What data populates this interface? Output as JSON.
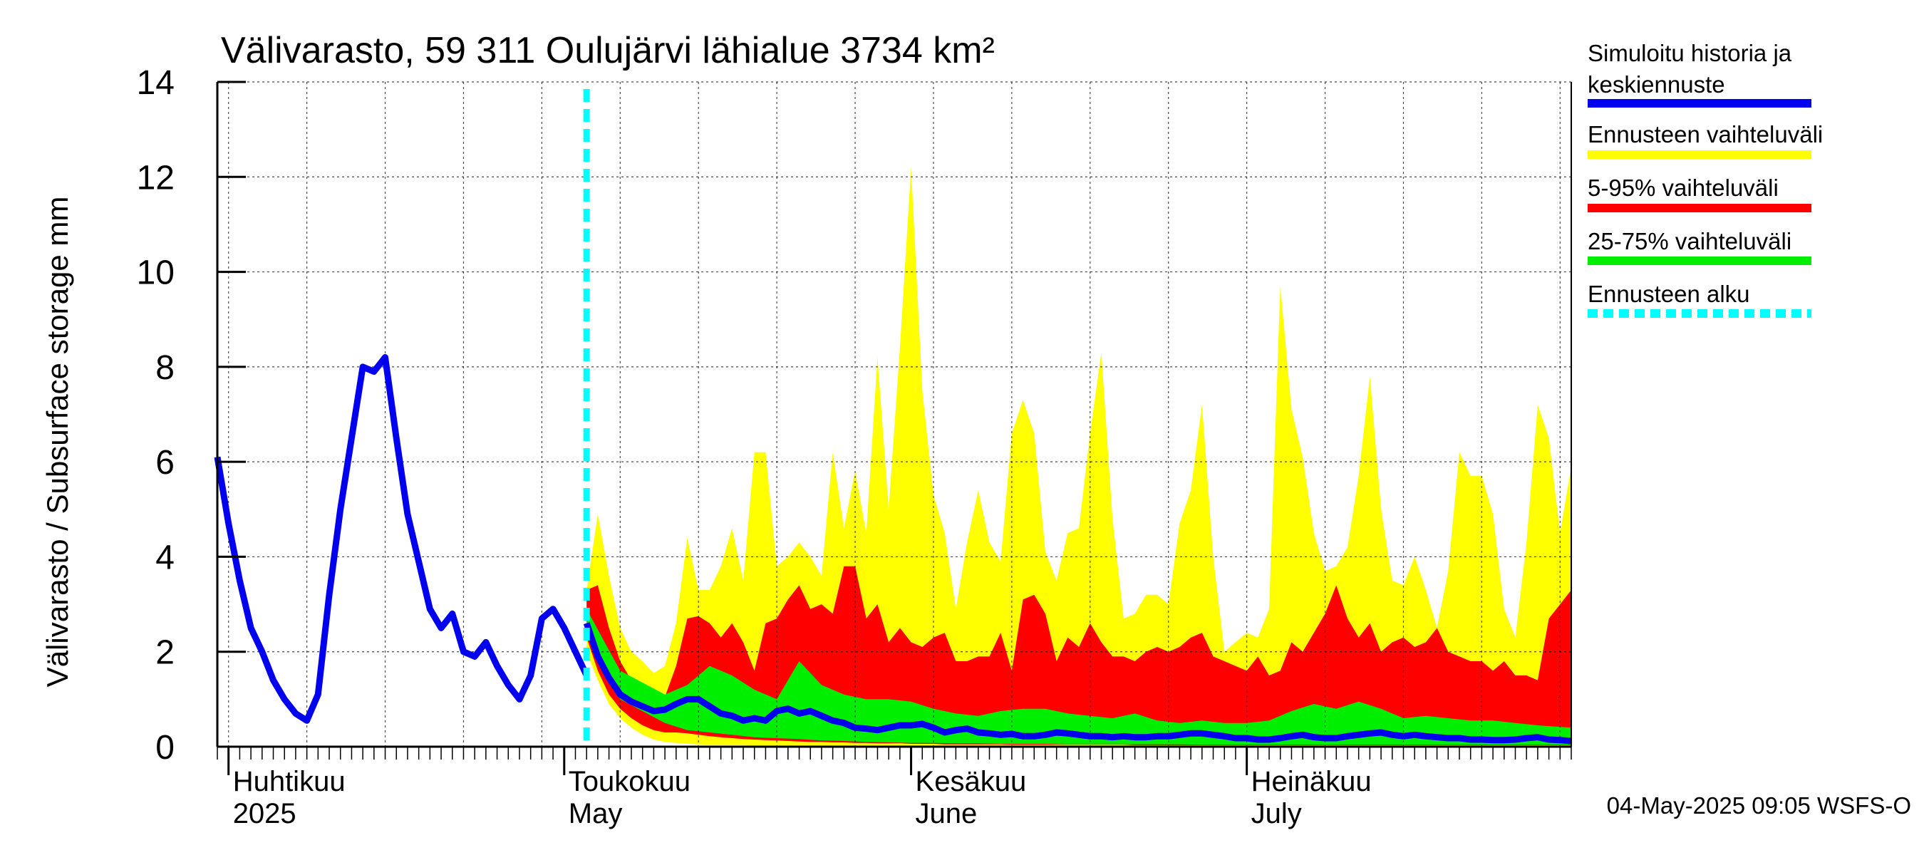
{
  "chart_data": {
    "type": "area",
    "title": "Välivarasto, 59 311 Oulujärvi lähialue 3734 km²",
    "ylabel": "Välivarasto / Subsurface storage  mm",
    "ylim": [
      0,
      14
    ],
    "yticks": [
      0,
      2,
      4,
      6,
      8,
      10,
      12,
      14
    ],
    "grid": true,
    "x_start": "2025-04-01",
    "x_end": "2025-07-31",
    "forecast_start": "2025-05-04",
    "months": [
      {
        "fi": "Huhtikuu",
        "en": "2025",
        "day": 1
      },
      {
        "fi": "Toukokuu",
        "en": "May",
        "day": 31
      },
      {
        "fi": "Kesäkuu",
        "en": "June",
        "day": 62
      },
      {
        "fi": "Heinäkuu",
        "en": "July",
        "day": 92
      }
    ],
    "legend": [
      {
        "label": "Simuloitu historia ja",
        "label2": "keskiennuste",
        "color": "#0000ee",
        "style": "solid"
      },
      {
        "label": "Ennusteen vaihteluväli",
        "color": "#ffff00",
        "style": "solid"
      },
      {
        "label": "5-95% vaihteluväli",
        "color": "#ff0000",
        "style": "solid"
      },
      {
        "label": "25-75% vaihteluväli",
        "color": "#00ee00",
        "style": "solid"
      },
      {
        "label": "Ennusteen alku",
        "color": "#00ffff",
        "style": "dashed"
      }
    ],
    "history": {
      "name": "Simuloitu historia ja keskiennuste",
      "days": [
        0,
        1,
        2,
        3,
        4,
        5,
        6,
        7,
        8,
        9,
        10,
        11,
        12,
        13,
        14,
        15,
        16,
        17,
        18,
        19,
        20,
        21,
        22,
        23,
        24,
        25,
        26,
        27,
        28,
        29,
        30,
        31,
        32,
        33
      ],
      "values": [
        6.1,
        4.7,
        3.5,
        2.5,
        2.0,
        1.4,
        1.0,
        0.7,
        0.55,
        1.1,
        3.2,
        5.0,
        6.5,
        8.0,
        7.9,
        8.2,
        6.5,
        4.9,
        3.9,
        2.9,
        2.5,
        2.8,
        2.0,
        1.9,
        2.2,
        1.7,
        1.3,
        1.0,
        1.5,
        2.7,
        2.9,
        2.5,
        2.0,
        1.5
      ]
    },
    "forecast": {
      "days": [
        33,
        34,
        35,
        36,
        37,
        38,
        39,
        40,
        41,
        42,
        43,
        44,
        45,
        46,
        47,
        48,
        49,
        50,
        51,
        52,
        53,
        54,
        55,
        56,
        57,
        58,
        59,
        60,
        61,
        62,
        63,
        64,
        65,
        66,
        67,
        68,
        69,
        70,
        71,
        72,
        73,
        74,
        75,
        76,
        77,
        78,
        79,
        80,
        81,
        82,
        83,
        84,
        85,
        86,
        87,
        88,
        89,
        90,
        91,
        92,
        93,
        94,
        95,
        96,
        97,
        98,
        99,
        100,
        101,
        102,
        103,
        104,
        105,
        106,
        107,
        108,
        109,
        110,
        111,
        112,
        113,
        114,
        115,
        116,
        117,
        118,
        119,
        120,
        121
      ],
      "mean": [
        2.6,
        1.9,
        1.45,
        1.1,
        0.95,
        0.85,
        0.75,
        0.78,
        0.9,
        1.0,
        1.0,
        0.85,
        0.7,
        0.65,
        0.55,
        0.6,
        0.55,
        0.75,
        0.8,
        0.7,
        0.75,
        0.65,
        0.55,
        0.5,
        0.4,
        0.38,
        0.35,
        0.4,
        0.45,
        0.45,
        0.48,
        0.4,
        0.3,
        0.35,
        0.38,
        0.3,
        0.28,
        0.25,
        0.27,
        0.22,
        0.22,
        0.25,
        0.3,
        0.28,
        0.25,
        0.22,
        0.22,
        0.2,
        0.22,
        0.2,
        0.2,
        0.22,
        0.22,
        0.25,
        0.28,
        0.28,
        0.25,
        0.22,
        0.18,
        0.18,
        0.15,
        0.15,
        0.18,
        0.22,
        0.25,
        0.2,
        0.18,
        0.18,
        0.22,
        0.25,
        0.28,
        0.3,
        0.25,
        0.22,
        0.25,
        0.22,
        0.2,
        0.18,
        0.18,
        0.15,
        0.15,
        0.14,
        0.14,
        0.15,
        0.18,
        0.2,
        0.15,
        0.14,
        0.12
      ],
      "range_min": [
        2.0,
        1.4,
        0.9,
        0.6,
        0.4,
        0.25,
        0.15,
        0.1,
        0.08,
        0.06,
        0.05,
        0.04,
        0.04,
        0.03,
        0.03,
        0.02,
        0.02,
        0.02,
        0.02,
        0.02,
        0.02,
        0.01,
        0.01,
        0.01,
        0.01,
        0.01,
        0.01,
        0.01,
        0.01,
        0.01,
        0.01,
        0.01,
        0.01,
        0.01,
        0.01,
        0.01,
        0.01,
        0.01,
        0.01,
        0.01,
        0.01,
        0.01,
        0.01,
        0.01,
        0.01,
        0.01,
        0.01,
        0.01,
        0.01,
        0.01,
        0.01,
        0.01,
        0.01,
        0.01,
        0.01,
        0.01,
        0.01,
        0.01,
        0.01,
        0.01,
        0.01,
        0.01,
        0.01,
        0.01,
        0.01,
        0.01,
        0.01,
        0.01,
        0.01,
        0.01,
        0.01,
        0.01,
        0.01,
        0.01,
        0.01,
        0.01,
        0.01,
        0.01,
        0.01,
        0.01,
        0.01,
        0.01,
        0.01,
        0.01,
        0.01,
        0.01,
        0.01,
        0.01,
        0.01
      ],
      "range_max": [
        3.3,
        4.9,
        3.6,
        2.5,
        2.0,
        1.8,
        1.55,
        1.7,
        2.6,
        4.4,
        3.3,
        3.3,
        3.8,
        4.6,
        3.5,
        6.2,
        6.2,
        3.8,
        4.0,
        4.3,
        4.0,
        3.6,
        6.2,
        4.6,
        5.8,
        4.5,
        8.2,
        5.0,
        8.4,
        12.2,
        7.5,
        5.3,
        4.5,
        2.9,
        4.3,
        5.4,
        4.3,
        3.9,
        6.6,
        7.3,
        6.6,
        4.1,
        3.5,
        4.5,
        4.6,
        6.6,
        8.3,
        4.8,
        2.7,
        2.8,
        3.2,
        3.2,
        3.0,
        4.7,
        5.4,
        7.2,
        4.0,
        2.0,
        2.2,
        2.4,
        2.3,
        2.9,
        9.7,
        7.1,
        6.1,
        4.5,
        3.7,
        3.8,
        4.2,
        5.7,
        7.8,
        5.0,
        3.5,
        3.4,
        4.0,
        3.3,
        2.5,
        3.7,
        6.2,
        5.7,
        5.7,
        4.9,
        2.9,
        2.3,
        4.3,
        7.2,
        6.5,
        4.5,
        5.9
      ],
      "p5": [
        2.3,
        1.6,
        1.1,
        0.8,
        0.6,
        0.45,
        0.35,
        0.3,
        0.3,
        0.28,
        0.25,
        0.22,
        0.2,
        0.18,
        0.16,
        0.15,
        0.14,
        0.13,
        0.12,
        0.11,
        0.1,
        0.1,
        0.09,
        0.09,
        0.08,
        0.08,
        0.07,
        0.07,
        0.07,
        0.06,
        0.06,
        0.06,
        0.05,
        0.05,
        0.05,
        0.05,
        0.05,
        0.05,
        0.04,
        0.04,
        0.04,
        0.04,
        0.04,
        0.04,
        0.04,
        0.04,
        0.04,
        0.04,
        0.04,
        0.03,
        0.03,
        0.03,
        0.03,
        0.03,
        0.03,
        0.03,
        0.03,
        0.03,
        0.03,
        0.03,
        0.03,
        0.03,
        0.03,
        0.03,
        0.03,
        0.03,
        0.03,
        0.03,
        0.03,
        0.03,
        0.03,
        0.03,
        0.03,
        0.03,
        0.03,
        0.03,
        0.03,
        0.03,
        0.03,
        0.03,
        0.03,
        0.03,
        0.03,
        0.03,
        0.03,
        0.03,
        0.03,
        0.03,
        0.03
      ],
      "p95": [
        3.3,
        3.4,
        2.5,
        1.8,
        1.4,
        1.2,
        1.1,
        1.05,
        1.7,
        2.7,
        2.75,
        2.6,
        2.3,
        2.6,
        2.2,
        1.6,
        2.6,
        2.7,
        3.1,
        3.4,
        2.9,
        3.0,
        2.8,
        3.8,
        3.8,
        2.7,
        3.0,
        2.2,
        2.5,
        2.2,
        2.1,
        2.3,
        2.4,
        1.8,
        1.8,
        1.9,
        1.9,
        2.4,
        1.6,
        3.1,
        3.2,
        2.8,
        1.8,
        2.3,
        2.1,
        2.6,
        2.2,
        1.9,
        1.9,
        1.8,
        2.0,
        2.1,
        2.0,
        2.1,
        2.3,
        2.4,
        1.9,
        1.8,
        1.7,
        1.6,
        1.9,
        1.5,
        1.6,
        2.2,
        2.0,
        2.4,
        2.8,
        3.4,
        2.7,
        2.3,
        2.6,
        2.0,
        2.2,
        2.3,
        2.1,
        2.2,
        2.5,
        2.0,
        1.9,
        1.8,
        1.8,
        1.6,
        1.8,
        1.5,
        1.5,
        1.4,
        2.7,
        3.0,
        3.3
      ]
    },
    "p25_p75": {
      "days": [
        33,
        36,
        40,
        42,
        44,
        46,
        48,
        50,
        52,
        54,
        56,
        58,
        60,
        62,
        64,
        66,
        68,
        70,
        72,
        74,
        76,
        78,
        80,
        82,
        84,
        86,
        88,
        90,
        92,
        94,
        96,
        98,
        100,
        102,
        104,
        106,
        108,
        110,
        112,
        114,
        116,
        118,
        121
      ],
      "p25": [
        2.6,
        1.0,
        0.5,
        0.35,
        0.3,
        0.25,
        0.2,
        0.18,
        0.16,
        0.13,
        0.12,
        0.1,
        0.09,
        0.08,
        0.08,
        0.07,
        0.07,
        0.06,
        0.06,
        0.06,
        0.05,
        0.05,
        0.05,
        0.05,
        0.05,
        0.05,
        0.04,
        0.04,
        0.04,
        0.04,
        0.04,
        0.04,
        0.04,
        0.04,
        0.04,
        0.04,
        0.04,
        0.04,
        0.04,
        0.04,
        0.04,
        0.04,
        0.04
      ],
      "p75": [
        2.9,
        1.6,
        1.1,
        1.3,
        1.7,
        1.5,
        1.2,
        1.0,
        1.8,
        1.3,
        1.1,
        1.0,
        1.0,
        0.95,
        0.8,
        0.7,
        0.65,
        0.75,
        0.8,
        0.8,
        0.7,
        0.65,
        0.6,
        0.7,
        0.55,
        0.5,
        0.55,
        0.5,
        0.5,
        0.55,
        0.75,
        0.9,
        0.8,
        0.95,
        0.8,
        0.6,
        0.65,
        0.6,
        0.55,
        0.55,
        0.5,
        0.45,
        0.4
      ]
    }
  },
  "footer": "04-May-2025 09:05 WSFS-O"
}
